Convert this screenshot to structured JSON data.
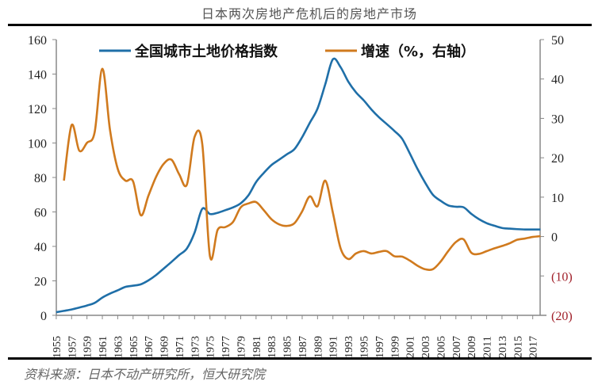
{
  "title": "日本两次房地产危机后的房地产市场",
  "source": "资料来源：日本不动产研究所，恒大研究院",
  "chart_data": {
    "type": "line",
    "title": "日本两次房地产危机后的房地产市场",
    "xlabel": "",
    "ylabel": "",
    "x": [
      1955,
      1956,
      1957,
      1958,
      1959,
      1960,
      1961,
      1962,
      1963,
      1964,
      1965,
      1966,
      1967,
      1968,
      1969,
      1970,
      1971,
      1972,
      1973,
      1974,
      1975,
      1976,
      1977,
      1978,
      1979,
      1980,
      1981,
      1982,
      1983,
      1984,
      1985,
      1986,
      1987,
      1988,
      1989,
      1990,
      1991,
      1992,
      1993,
      1994,
      1995,
      1996,
      1997,
      1998,
      1999,
      2000,
      2001,
      2002,
      2003,
      2004,
      2005,
      2006,
      2007,
      2008,
      2009,
      2010,
      2011,
      2012,
      2013,
      2014,
      2015,
      2016,
      2017,
      2018
    ],
    "x_tick_labels": [
      "1955",
      "1957",
      "1959",
      "1961",
      "1963",
      "1965",
      "1967",
      "1969",
      "1971",
      "1973",
      "1975",
      "1977",
      "1979",
      "1981",
      "1983",
      "1985",
      "1987",
      "1989",
      "1991",
      "1993",
      "1995",
      "1997",
      "1999",
      "2001",
      "2003",
      "2005",
      "2007",
      "2009",
      "2011",
      "2013",
      "2015",
      "2017"
    ],
    "left_axis": {
      "ylim": [
        0,
        160
      ],
      "ticks": [
        "0",
        "20",
        "40",
        "60",
        "80",
        "100",
        "120",
        "140",
        "160"
      ]
    },
    "right_axis": {
      "ylim": [
        -20,
        50
      ],
      "ticks": [
        "(20)",
        "(10)",
        "0",
        "10",
        "20",
        "30",
        "40",
        "50"
      ],
      "tick_values": [
        -20,
        -10,
        0,
        10,
        20,
        30,
        40,
        50
      ],
      "negative_color": "#a0202a"
    },
    "grid": false,
    "legend_placement": "top",
    "series": [
      {
        "name": "全国城市土地价格指数",
        "axis": "left",
        "color": "#1f6fa8",
        "values": [
          1.8,
          2.6,
          3.4,
          4.5,
          5.7,
          7.2,
          10.3,
          12.6,
          14.5,
          16.5,
          17.2,
          18,
          20.3,
          23.4,
          27.2,
          31,
          35,
          38.8,
          48,
          61.8,
          58.8,
          59.5,
          61,
          62.6,
          65,
          69.6,
          77.3,
          82.6,
          87.2,
          90.3,
          93.4,
          96.5,
          103.4,
          111.8,
          120,
          134,
          148.6,
          144,
          135.6,
          129.4,
          124.8,
          119.5,
          114.9,
          111,
          107,
          102.5,
          94,
          85,
          77,
          70,
          66.5,
          63.8,
          63,
          62.7,
          58.9,
          55.8,
          53.5,
          52,
          50.7,
          50.3,
          50,
          49.8,
          49.8,
          49.8
        ]
      },
      {
        "name": "增速（%，右轴）",
        "axis": "right",
        "color": "#d07a1e",
        "values": [
          null,
          14.2,
          28.3,
          21.8,
          23.8,
          26.5,
          42.6,
          27,
          17.2,
          14.2,
          14,
          5.4,
          10.4,
          15.2,
          18.5,
          19.5,
          15.8,
          13.2,
          25.3,
          23.5,
          -5,
          1.7,
          2.4,
          3.7,
          7.4,
          8.4,
          8.75,
          6.7,
          4.4,
          3.1,
          2.7,
          3.4,
          6.4,
          10.2,
          7.7,
          14.2,
          6,
          -3,
          -5.7,
          -4.3,
          -3.7,
          -4.3,
          -3.9,
          -3.7,
          -5,
          -5.1,
          -6.1,
          -7.4,
          -8.3,
          -8.3,
          -6.4,
          -3.7,
          -1.4,
          -0.7,
          -4.1,
          -4.4,
          -3.7,
          -3,
          -2.4,
          -1.7,
          -0.8,
          -0.5,
          -0.1,
          0.1
        ]
      }
    ]
  }
}
